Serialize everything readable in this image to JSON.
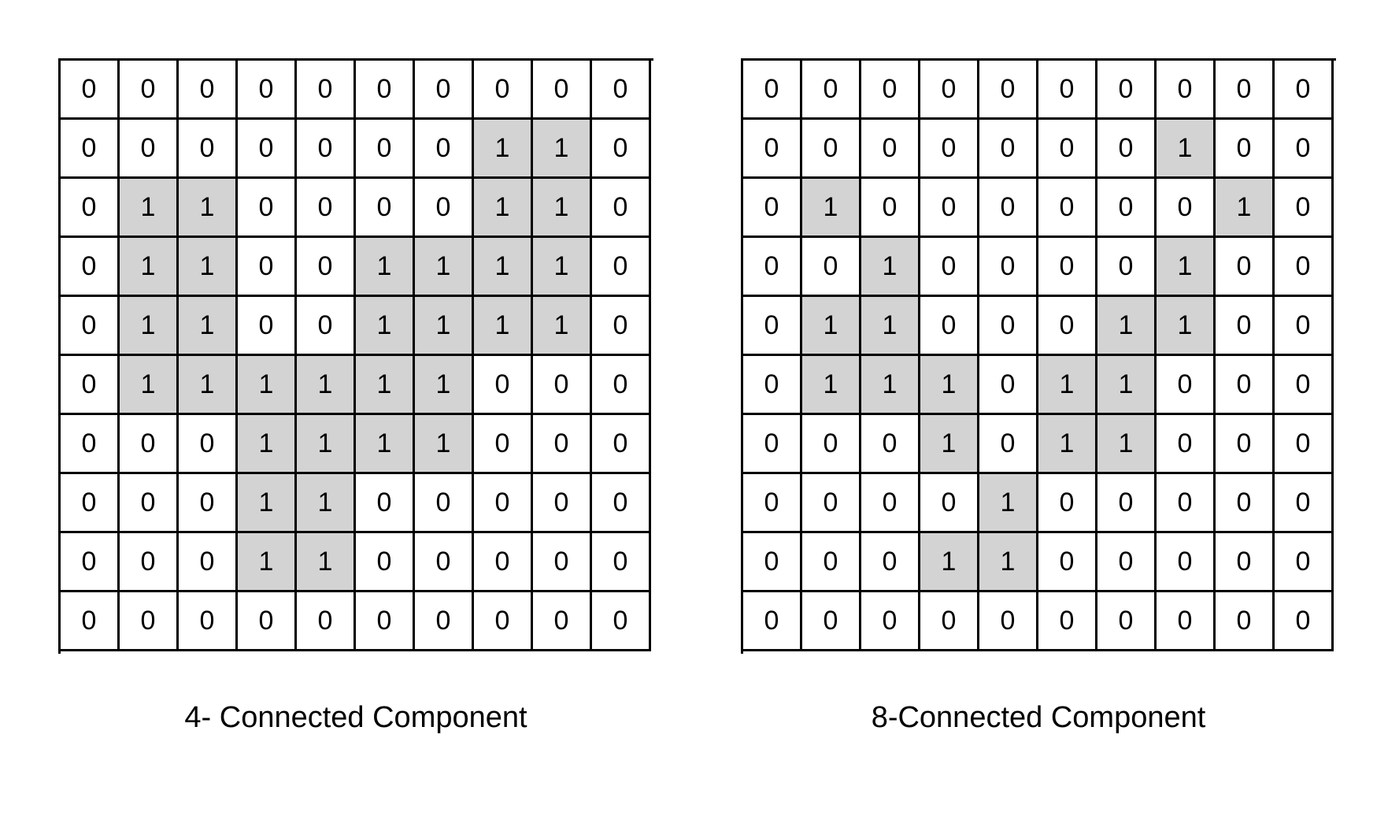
{
  "panels": [
    {
      "caption": "4- Connected Component",
      "grid": [
        [
          0,
          0,
          0,
          0,
          0,
          0,
          0,
          0,
          0,
          0
        ],
        [
          0,
          0,
          0,
          0,
          0,
          0,
          0,
          1,
          1,
          0
        ],
        [
          0,
          1,
          1,
          0,
          0,
          0,
          0,
          1,
          1,
          0
        ],
        [
          0,
          1,
          1,
          0,
          0,
          1,
          1,
          1,
          1,
          0
        ],
        [
          0,
          1,
          1,
          0,
          0,
          1,
          1,
          1,
          1,
          0
        ],
        [
          0,
          1,
          1,
          1,
          1,
          1,
          1,
          0,
          0,
          0
        ],
        [
          0,
          0,
          0,
          1,
          1,
          1,
          1,
          0,
          0,
          0
        ],
        [
          0,
          0,
          0,
          1,
          1,
          0,
          0,
          0,
          0,
          0
        ],
        [
          0,
          0,
          0,
          1,
          1,
          0,
          0,
          0,
          0,
          0
        ],
        [
          0,
          0,
          0,
          0,
          0,
          0,
          0,
          0,
          0,
          0
        ]
      ]
    },
    {
      "caption": "8-Connected Component",
      "grid": [
        [
          0,
          0,
          0,
          0,
          0,
          0,
          0,
          0,
          0,
          0
        ],
        [
          0,
          0,
          0,
          0,
          0,
          0,
          0,
          1,
          0,
          0
        ],
        [
          0,
          1,
          0,
          0,
          0,
          0,
          0,
          0,
          1,
          0
        ],
        [
          0,
          0,
          1,
          0,
          0,
          0,
          0,
          1,
          0,
          0
        ],
        [
          0,
          1,
          1,
          0,
          0,
          0,
          1,
          1,
          0,
          0
        ],
        [
          0,
          1,
          1,
          1,
          0,
          1,
          1,
          0,
          0,
          0
        ],
        [
          0,
          0,
          0,
          1,
          0,
          1,
          1,
          0,
          0,
          0
        ],
        [
          0,
          0,
          0,
          0,
          1,
          0,
          0,
          0,
          0,
          0
        ],
        [
          0,
          0,
          0,
          1,
          1,
          0,
          0,
          0,
          0,
          0
        ],
        [
          0,
          0,
          0,
          0,
          0,
          0,
          0,
          0,
          0,
          0
        ]
      ]
    }
  ],
  "colors": {
    "filled_cell": "#d3d3d3",
    "empty_cell": "#ffffff",
    "grid_line": "#000000"
  }
}
